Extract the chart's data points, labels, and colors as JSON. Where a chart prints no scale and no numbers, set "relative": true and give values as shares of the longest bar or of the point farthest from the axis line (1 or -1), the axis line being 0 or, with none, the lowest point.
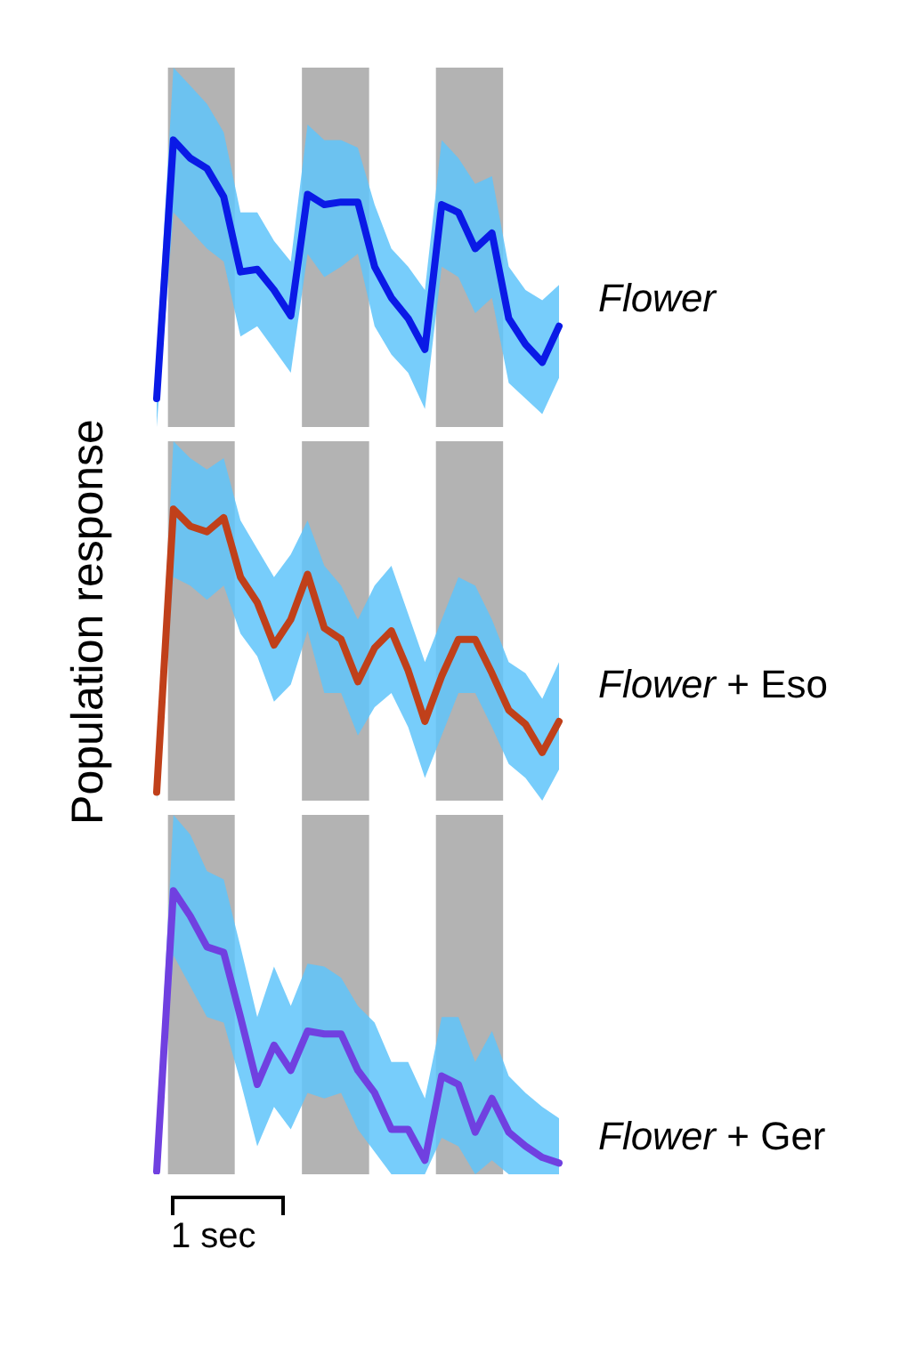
{
  "chart_data": [
    {
      "type": "line",
      "relative": true,
      "legend": false,
      "categories": [
        null,
        null,
        null,
        null,
        null,
        null,
        null,
        null,
        null,
        null,
        null,
        null,
        null,
        null,
        null,
        null,
        null,
        null,
        null,
        null,
        null,
        null,
        null,
        null,
        null
      ],
      "series": [
        {
          "name": "Flower",
          "color": "#0a1ae6",
          "values": [
            0,
            1,
            0.93,
            0.89,
            0.78,
            0.49,
            0.5,
            0.42,
            0.32,
            0.79,
            0.75,
            0.76,
            0.76,
            0.51,
            0.39,
            0.31,
            0.19,
            0.75,
            0.72,
            0.58,
            0.64,
            0.31,
            0.21,
            0.14,
            0.28
          ],
          "upper": [
            0.17,
            1.28,
            1.21,
            1.14,
            1.03,
            0.72,
            0.72,
            0.61,
            0.53,
            1.06,
            1,
            1,
            0.97,
            0.75,
            0.58,
            0.51,
            0.42,
            1,
            0.93,
            0.83,
            0.86,
            0.51,
            0.42,
            0.38,
            0.44
          ],
          "lower": [
            -0.11,
            0.72,
            0.65,
            0.58,
            0.53,
            0.24,
            0.28,
            0.19,
            0.1,
            0.56,
            0.47,
            0.51,
            0.56,
            0.28,
            0.17,
            0.1,
            -0.04,
            0.51,
            0.47,
            0.33,
            0.39,
            0.06,
            0,
            -0.06,
            0.08
          ]
        }
      ]
    },
    {
      "type": "line",
      "relative": true,
      "legend": false,
      "ylabel": "Population response",
      "categories": [
        null,
        null,
        null,
        null,
        null,
        null,
        null,
        null,
        null,
        null,
        null,
        null,
        null,
        null,
        null,
        null,
        null,
        null,
        null,
        null,
        null,
        null,
        null,
        null,
        null
      ],
      "series": [
        {
          "name": "Flower + Eso",
          "color": "#c0401a",
          "values": [
            0,
            1,
            0.94,
            0.92,
            0.97,
            0.76,
            0.67,
            0.52,
            0.61,
            0.77,
            0.58,
            0.54,
            0.39,
            0.51,
            0.57,
            0.43,
            0.25,
            0.41,
            0.54,
            0.54,
            0.42,
            0.29,
            0.24,
            0.14,
            0.25
          ],
          "upper": [
            0.1,
            1.24,
            1.18,
            1.14,
            1.18,
            0.96,
            0.86,
            0.76,
            0.84,
            0.96,
            0.8,
            0.73,
            0.61,
            0.73,
            0.8,
            0.63,
            0.46,
            0.61,
            0.76,
            0.73,
            0.61,
            0.46,
            0.42,
            0.33,
            0.46
          ],
          "lower": [
            -0.03,
            0.76,
            0.73,
            0.68,
            0.73,
            0.56,
            0.48,
            0.32,
            0.38,
            0.57,
            0.35,
            0.35,
            0.2,
            0.3,
            0.35,
            0.23,
            0.05,
            0.2,
            0.35,
            0.35,
            0.23,
            0.1,
            0.05,
            -0.03,
            0.08
          ]
        }
      ]
    },
    {
      "type": "line",
      "relative": true,
      "legend": false,
      "annotations": [
        "1 sec"
      ],
      "categories": [
        null,
        null,
        null,
        null,
        null,
        null,
        null,
        null,
        null,
        null,
        null,
        null,
        null,
        null,
        null,
        null,
        null,
        null,
        null,
        null,
        null,
        null,
        null,
        null,
        null
      ],
      "series": [
        {
          "name": "Flower + Ger",
          "color": "#7040e0",
          "values": [
            0,
            1,
            0.91,
            0.8,
            0.78,
            0.55,
            0.31,
            0.45,
            0.36,
            0.5,
            0.49,
            0.49,
            0.36,
            0.28,
            0.15,
            0.15,
            0.04,
            0.34,
            0.31,
            0.14,
            0.26,
            0.14,
            0.09,
            0.05,
            0.03
          ],
          "upper": [
            0.12,
            1.27,
            1.2,
            1.07,
            1.04,
            0.8,
            0.55,
            0.73,
            0.59,
            0.74,
            0.73,
            0.69,
            0.59,
            0.53,
            0.39,
            0.39,
            0.26,
            0.55,
            0.55,
            0.39,
            0.5,
            0.34,
            0.28,
            0.23,
            0.19
          ],
          "lower": [
            -0.01,
            0.77,
            0.66,
            0.55,
            0.53,
            0.32,
            0.09,
            0.23,
            0.15,
            0.28,
            0.26,
            0.28,
            0.15,
            0.07,
            -0.01,
            -0.01,
            -0.01,
            0.12,
            0.09,
            -0.01,
            0.04,
            -0.01,
            -0.01,
            -0.01,
            -0.01
          ]
        }
      ]
    }
  ]
}
